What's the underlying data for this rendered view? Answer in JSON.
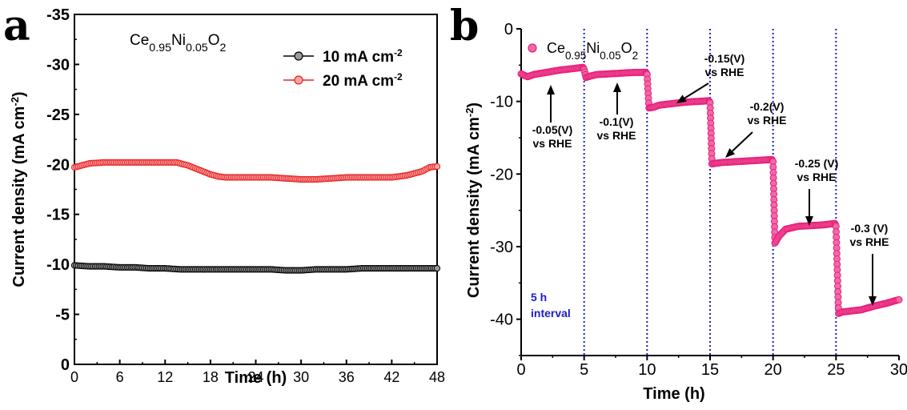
{
  "chart_data": [
    {
      "panel": "a",
      "type": "line",
      "xlabel": "Time (h)",
      "ylabel": "Current density (mA cm⁻²)",
      "xlim": [
        0,
        48
      ],
      "ylim": [
        0,
        -35
      ],
      "xticks": [
        0,
        6,
        12,
        18,
        24,
        30,
        36,
        42,
        48
      ],
      "yticks": [
        0,
        -5,
        -10,
        -15,
        -20,
        -25,
        -30,
        -35
      ],
      "grid": false,
      "legend_position": "top-right",
      "legend_title": {
        "base": "Ce",
        "sub1": "0.95",
        "mid": "Ni",
        "sub2": "0.05",
        "end": "O",
        "sub3": "2"
      },
      "series": [
        {
          "name": "10 mA cm⁻²",
          "color": "#000000",
          "fill": "#9a9a9a",
          "x": [
            0,
            2,
            4,
            6,
            8,
            10,
            12,
            14,
            16,
            18,
            20,
            22,
            24,
            26,
            28,
            30,
            32,
            34,
            36,
            38,
            40,
            42,
            44,
            46,
            48
          ],
          "y": [
            -9.9,
            -9.8,
            -9.8,
            -9.7,
            -9.7,
            -9.6,
            -9.6,
            -9.5,
            -9.5,
            -9.5,
            -9.5,
            -9.5,
            -9.5,
            -9.5,
            -9.4,
            -9.4,
            -9.5,
            -9.5,
            -9.5,
            -9.6,
            -9.6,
            -9.6,
            -9.6,
            -9.6,
            -9.6
          ]
        },
        {
          "name": "20 mA cm⁻²",
          "color": "#e8201f",
          "fill": "#f6a6a6",
          "x": [
            0,
            2,
            4,
            6,
            8,
            10,
            12,
            13.5,
            15,
            16,
            17,
            18,
            19,
            20,
            22,
            24,
            26,
            28,
            30,
            32,
            34,
            36,
            38,
            40,
            42,
            44,
            46,
            47,
            48
          ],
          "y": [
            -19.7,
            -20.1,
            -20.2,
            -20.2,
            -20.2,
            -20.2,
            -20.2,
            -20.2,
            -19.9,
            -19.6,
            -19.3,
            -19.0,
            -18.8,
            -18.7,
            -18.7,
            -18.7,
            -18.7,
            -18.6,
            -18.5,
            -18.5,
            -18.6,
            -18.7,
            -18.7,
            -18.7,
            -18.7,
            -18.9,
            -19.3,
            -19.7,
            -19.8
          ]
        }
      ]
    },
    {
      "panel": "b",
      "type": "line",
      "xlabel": "Time (h)",
      "ylabel": "Current density (mA cm⁻²)",
      "xlim": [
        0,
        30
      ],
      "ylim": [
        0,
        -45
      ],
      "xticks": [
        0,
        5,
        10,
        15,
        20,
        25,
        30
      ],
      "yticks": [
        0,
        -10,
        -20,
        -30,
        -40
      ],
      "grid": false,
      "legend_position": "top-left",
      "legend_title": {
        "base": "Ce",
        "sub1": "0.95",
        "mid": "Ni",
        "sub2": "0.05",
        "end": "O",
        "sub3": "2"
      },
      "series": [
        {
          "name": "",
          "color": "#e8207a",
          "fill": "#f06aa8",
          "x": [
            0,
            0.5,
            1,
            2,
            3,
            4,
            4.9,
            5,
            5.15,
            5.5,
            6,
            7,
            8,
            9,
            9.9,
            10,
            10.15,
            10.5,
            11,
            12,
            13,
            14,
            14.9,
            15,
            15.15,
            15.5,
            16,
            17,
            18,
            19,
            19.9,
            20,
            20.15,
            20.5,
            21,
            22,
            23,
            24,
            24.9,
            25,
            25.2,
            25.5,
            26,
            27,
            28,
            29,
            30
          ],
          "y": [
            -6.2,
            -6.6,
            -6.3,
            -6.0,
            -5.7,
            -5.5,
            -5.3,
            -5.6,
            -6.7,
            -6.5,
            -6.3,
            -6.2,
            -6.1,
            -6.0,
            -6.0,
            -6.3,
            -10.9,
            -10.8,
            -10.5,
            -10.3,
            -10.1,
            -10.0,
            -9.9,
            -10.2,
            -18.6,
            -18.5,
            -18.4,
            -18.3,
            -18.2,
            -18.1,
            -18.0,
            -18.3,
            -29.5,
            -28.5,
            -27.6,
            -27.2,
            -27.1,
            -27.0,
            -26.8,
            -27.2,
            -39.2,
            -39.0,
            -38.9,
            -38.7,
            -38.2,
            -37.8,
            -37.3
          ]
        }
      ],
      "annotations": [
        {
          "line1": "-0.05(V)",
          "line2": "vs RHE"
        },
        {
          "line1": "-0.1(V)",
          "line2": "vs RHE"
        },
        {
          "line1": "-0.15(V)",
          "line2": "vs RHE"
        },
        {
          "line1": "-0.2(V)",
          "line2": "vs RHE"
        },
        {
          "line1": "-0.25 (V)",
          "line2": "vs RHE"
        },
        {
          "line1": "-0.3 (V)",
          "line2": "vs RHE"
        }
      ],
      "interval_note": {
        "line1": "5 h",
        "line2": "interval",
        "color": "#1c1cc8"
      },
      "interval_lines_x": [
        5,
        10,
        15,
        20,
        25
      ]
    }
  ],
  "panel_labels": [
    "a",
    "b"
  ]
}
